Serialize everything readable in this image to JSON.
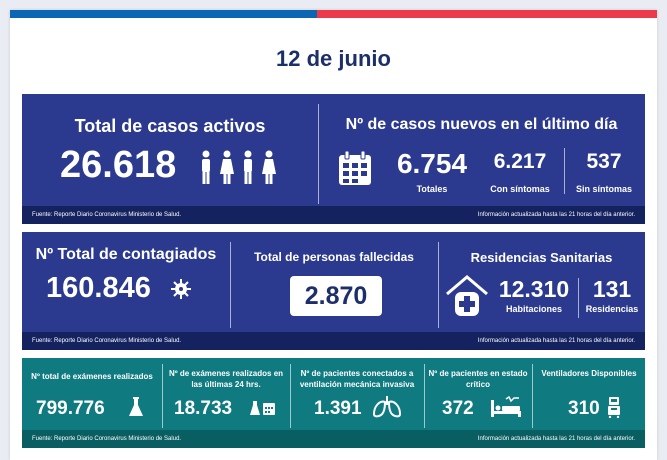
{
  "date": "12 de junio",
  "active": {
    "title": "Total de casos activos",
    "value": "26.618"
  },
  "new_cases": {
    "title": "Nº de casos nuevos en el último día",
    "total_value": "6.754",
    "total_label": "Totales",
    "symptoms_value": "6.217",
    "symptoms_label": "Con síntomas",
    "nosymptoms_value": "537",
    "nosymptoms_label": "Sin síntomas"
  },
  "footer": {
    "source": "Fuente: Reporte Diario Coronavirus Ministerio de Salud.",
    "updated": "Información actualizada hasta las 21 horas  del día anterior."
  },
  "infected": {
    "title": "Nº Total de contagiados",
    "value": "160.846"
  },
  "deaths": {
    "title": "Total de personas fallecidas",
    "value": "2.870"
  },
  "residences": {
    "title": "Residencias Sanitarias",
    "rooms_value": "12.310",
    "rooms_label": "Habitaciones",
    "res_value": "131",
    "res_label": "Residencias"
  },
  "exams_total": {
    "title": "Nº total de exámenes realizados",
    "value": "799.776"
  },
  "exams_24h": {
    "title": "Nº de exámenes realizados en las últimas 24 hrs.",
    "value": "18.733"
  },
  "ventilation": {
    "title": "Nº de pacientes conectados a ventilación mecánica invasiva",
    "value": "1.391"
  },
  "critical": {
    "title": "Nº de pacientes  en estado crítico",
    "value": "372"
  },
  "ventilators": {
    "title": "Ventiladores Disponibles",
    "value": "310"
  },
  "colors": {
    "navy": "#2b3a8f",
    "teal": "#0f7a80",
    "blue": "#0b66b3",
    "red": "#ea3a4c"
  },
  "icons": [
    "people-icon",
    "calendar-icon",
    "virus-icon",
    "house-cross-icon",
    "flask-icon",
    "lab-flask-calendar-icon",
    "lungs-icon",
    "bed-patient-icon",
    "ventilator-icon"
  ]
}
